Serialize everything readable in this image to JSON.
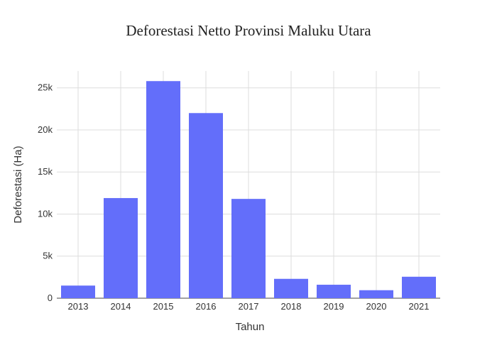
{
  "chart_data": {
    "type": "bar",
    "title": "Deforestasi Netto Provinsi Maluku Utara",
    "xlabel": "Tahun",
    "ylabel": "Deforestasi (Ha)",
    "categories": [
      "2013",
      "2014",
      "2015",
      "2016",
      "2017",
      "2018",
      "2019",
      "2020",
      "2021"
    ],
    "values": [
      1500,
      11900,
      25800,
      22000,
      11800,
      2300,
      1600,
      950,
      2550
    ],
    "ylim": [
      0,
      27000
    ],
    "yticks": [
      0,
      5000,
      10000,
      15000,
      20000,
      25000
    ],
    "ytick_labels": [
      "0",
      "5k",
      "10k",
      "15k",
      "20k",
      "25k"
    ],
    "grid": true,
    "bar_color": "#636efa"
  }
}
